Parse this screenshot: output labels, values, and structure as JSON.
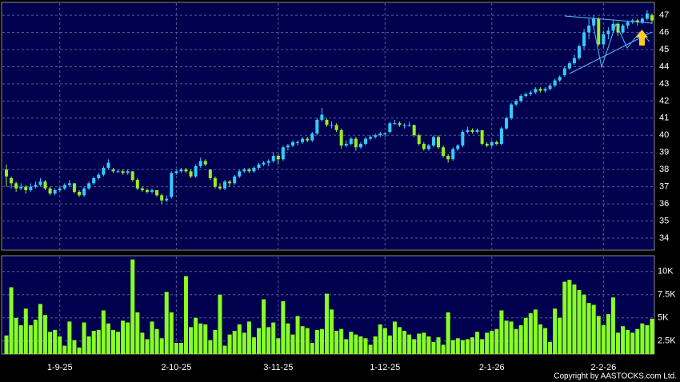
{
  "chart_data": {
    "type": "candlestick",
    "categories": [
      null,
      null,
      null,
      null,
      null,
      null,
      null,
      null,
      null,
      null,
      null,
      "1-9-25",
      null,
      null,
      null,
      null,
      null,
      null,
      null,
      null,
      null,
      null,
      null,
      null,
      null,
      null,
      null,
      null,
      null,
      null,
      null,
      null,
      null,
      null,
      null,
      "2-10-25",
      null,
      null,
      null,
      null,
      null,
      null,
      null,
      null,
      null,
      null,
      null,
      null,
      null,
      null,
      null,
      null,
      null,
      null,
      null,
      null,
      "3-11-25",
      null,
      null,
      null,
      null,
      null,
      null,
      null,
      null,
      null,
      null,
      null,
      null,
      null,
      null,
      null,
      null,
      null,
      null,
      null,
      null,
      null,
      "1-12-25",
      null,
      null,
      null,
      null,
      null,
      null,
      null,
      null,
      null,
      null,
      null,
      null,
      null,
      null,
      null,
      null,
      null,
      null,
      null,
      null,
      null,
      "2-1-26",
      null,
      null,
      null,
      null,
      null,
      null,
      null,
      null,
      null,
      null,
      null,
      null,
      null,
      null,
      null,
      null,
      null,
      null,
      null,
      null,
      null,
      null,
      "2-2-26",
      null,
      null,
      null,
      null,
      null,
      null,
      null,
      null,
      null,
      null
    ],
    "candles": [
      [
        38.0,
        38.3,
        37.0,
        37.6
      ],
      [
        37.5,
        37.6,
        36.9,
        37.2
      ],
      [
        37.2,
        37.3,
        36.7,
        36.9
      ],
      [
        36.9,
        37.2,
        36.8,
        37.0
      ],
      [
        37.0,
        37.1,
        36.6,
        36.8
      ],
      [
        36.8,
        37.2,
        36.7,
        37.0
      ],
      [
        37.0,
        37.3,
        36.9,
        37.1
      ],
      [
        37.1,
        37.5,
        37.0,
        37.3
      ],
      [
        37.3,
        37.4,
        36.8,
        36.9
      ],
      [
        36.9,
        37.0,
        36.5,
        36.6
      ],
      [
        36.6,
        36.9,
        36.5,
        36.8
      ],
      [
        36.8,
        37.0,
        36.7,
        36.9
      ],
      [
        36.9,
        37.2,
        36.8,
        37.1
      ],
      [
        37.1,
        37.4,
        37.0,
        37.2
      ],
      [
        37.2,
        37.2,
        36.6,
        36.7
      ],
      [
        36.7,
        36.8,
        36.4,
        36.5
      ],
      [
        36.5,
        37.0,
        36.4,
        36.9
      ],
      [
        36.9,
        37.3,
        36.8,
        37.2
      ],
      [
        37.2,
        37.6,
        37.1,
        37.5
      ],
      [
        37.5,
        37.8,
        37.4,
        37.7
      ],
      [
        37.7,
        38.2,
        37.6,
        38.1
      ],
      [
        38.1,
        38.6,
        38.0,
        38.4
      ],
      [
        38.0,
        38.1,
        37.8,
        37.9
      ],
      [
        37.9,
        38.0,
        37.8,
        37.9
      ],
      [
        37.9,
        38.0,
        37.7,
        37.8
      ],
      [
        37.8,
        38.0,
        37.7,
        37.9
      ],
      [
        37.9,
        37.9,
        37.3,
        37.4
      ],
      [
        37.4,
        37.5,
        36.8,
        36.9
      ],
      [
        36.9,
        37.0,
        36.7,
        36.8
      ],
      [
        36.8,
        36.9,
        36.6,
        36.7
      ],
      [
        36.7,
        36.9,
        36.6,
        36.8
      ],
      [
        36.8,
        36.8,
        36.4,
        36.5
      ],
      [
        36.5,
        36.6,
        36.0,
        36.2
      ],
      [
        36.2,
        36.5,
        36.1,
        36.3
      ],
      [
        36.4,
        37.9,
        36.3,
        37.8
      ],
      [
        37.8,
        38.0,
        37.7,
        37.9
      ],
      [
        37.9,
        38.1,
        37.8,
        38.0
      ],
      [
        38.0,
        38.1,
        37.8,
        37.9
      ],
      [
        37.9,
        38.0,
        37.5,
        37.6
      ],
      [
        37.6,
        38.3,
        37.5,
        38.2
      ],
      [
        38.2,
        38.7,
        38.1,
        38.5
      ],
      [
        38.5,
        38.6,
        38.2,
        38.3
      ],
      [
        38.0,
        38.0,
        37.4,
        37.5
      ],
      [
        37.5,
        37.6,
        36.9,
        37.0
      ],
      [
        37.0,
        37.2,
        36.8,
        36.9
      ],
      [
        36.9,
        37.4,
        36.8,
        37.3
      ],
      [
        37.3,
        37.4,
        37.0,
        37.2
      ],
      [
        37.2,
        37.7,
        37.1,
        37.6
      ],
      [
        37.6,
        38.0,
        37.5,
        37.9
      ],
      [
        37.9,
        38.1,
        37.8,
        38.0
      ],
      [
        38.0,
        38.1,
        37.8,
        37.9
      ],
      [
        37.9,
        38.2,
        37.8,
        38.1
      ],
      [
        38.1,
        38.4,
        38.0,
        38.3
      ],
      [
        38.3,
        38.5,
        38.2,
        38.4
      ],
      [
        38.4,
        38.6,
        38.2,
        38.5
      ],
      [
        38.5,
        39.0,
        38.4,
        38.8
      ],
      [
        38.8,
        38.9,
        38.3,
        38.6
      ],
      [
        38.6,
        39.4,
        38.5,
        39.3
      ],
      [
        39.3,
        39.5,
        39.1,
        39.4
      ],
      [
        39.4,
        39.7,
        39.3,
        39.6
      ],
      [
        39.6,
        39.7,
        39.4,
        39.6
      ],
      [
        39.6,
        39.9,
        39.5,
        39.8
      ],
      [
        39.8,
        39.9,
        39.6,
        39.7
      ],
      [
        39.7,
        40.2,
        39.6,
        40.1
      ],
      [
        40.1,
        41.0,
        40.0,
        40.9
      ],
      [
        40.9,
        41.6,
        40.8,
        41.2
      ],
      [
        40.9,
        41.0,
        40.5,
        40.6
      ],
      [
        40.6,
        40.8,
        40.4,
        40.6
      ],
      [
        40.6,
        40.7,
        40.2,
        40.3
      ],
      [
        40.3,
        40.4,
        39.2,
        39.4
      ],
      [
        39.4,
        39.7,
        39.3,
        39.5
      ],
      [
        39.5,
        39.9,
        39.4,
        39.8
      ],
      [
        39.8,
        39.9,
        39.1,
        39.3
      ],
      [
        39.3,
        39.6,
        39.2,
        39.5
      ],
      [
        39.5,
        39.9,
        39.4,
        39.8
      ],
      [
        39.8,
        40.0,
        39.7,
        39.9
      ],
      [
        39.9,
        40.1,
        39.8,
        40.0
      ],
      [
        40.0,
        40.2,
        39.9,
        40.1
      ],
      [
        40.1,
        40.2,
        39.9,
        40.1
      ],
      [
        40.2,
        40.8,
        40.1,
        40.7
      ],
      [
        40.7,
        40.9,
        40.6,
        40.7
      ],
      [
        40.7,
        40.8,
        40.5,
        40.6
      ],
      [
        40.6,
        40.7,
        40.4,
        40.6
      ],
      [
        40.6,
        40.8,
        40.5,
        40.6
      ],
      [
        40.6,
        40.6,
        39.9,
        40.0
      ],
      [
        40.0,
        40.1,
        39.4,
        39.5
      ],
      [
        39.5,
        39.6,
        39.1,
        39.2
      ],
      [
        39.2,
        39.5,
        39.1,
        39.4
      ],
      [
        39.4,
        40.0,
        39.3,
        39.9
      ],
      [
        39.9,
        40.0,
        39.2,
        39.3
      ],
      [
        39.3,
        39.4,
        38.7,
        38.8
      ],
      [
        38.8,
        38.9,
        38.4,
        38.6
      ],
      [
        38.6,
        39.3,
        38.5,
        39.2
      ],
      [
        39.2,
        39.5,
        39.1,
        39.4
      ],
      [
        39.4,
        40.3,
        39.3,
        40.2
      ],
      [
        40.2,
        40.5,
        40.1,
        40.3
      ],
      [
        40.3,
        40.4,
        40.1,
        40.2
      ],
      [
        40.2,
        40.4,
        40.1,
        40.3
      ],
      [
        40.3,
        40.3,
        39.4,
        39.5
      ],
      [
        39.5,
        39.6,
        39.3,
        39.4
      ],
      [
        39.4,
        39.7,
        39.3,
        39.6
      ],
      [
        39.6,
        39.7,
        39.4,
        39.5
      ],
      [
        39.5,
        40.5,
        39.4,
        40.4
      ],
      [
        40.4,
        41.1,
        40.3,
        41.0
      ],
      [
        41.0,
        41.9,
        40.9,
        41.8
      ],
      [
        41.8,
        42.1,
        41.7,
        42.0
      ],
      [
        42.0,
        42.4,
        41.9,
        42.3
      ],
      [
        42.3,
        42.5,
        42.2,
        42.4
      ],
      [
        42.4,
        42.6,
        42.3,
        42.5
      ],
      [
        42.5,
        42.8,
        42.4,
        42.7
      ],
      [
        42.7,
        42.8,
        42.5,
        42.6
      ],
      [
        42.6,
        42.8,
        42.5,
        42.7
      ],
      [
        42.7,
        43.0,
        42.6,
        42.9
      ],
      [
        42.9,
        43.3,
        42.8,
        43.2
      ],
      [
        43.2,
        43.5,
        43.1,
        43.4
      ],
      [
        43.5,
        44.0,
        43.4,
        43.9
      ],
      [
        43.9,
        44.3,
        43.8,
        44.2
      ],
      [
        44.2,
        44.7,
        44.1,
        44.5
      ],
      [
        44.5,
        45.3,
        44.4,
        45.2
      ],
      [
        45.2,
        46.2,
        45.0,
        46.0
      ],
      [
        46.0,
        46.8,
        45.6,
        46.4
      ],
      [
        46.4,
        47.0,
        46.2,
        46.8
      ],
      [
        46.8,
        46.9,
        45.2,
        45.3
      ],
      [
        45.3,
        46.1,
        45.1,
        45.9
      ],
      [
        45.9,
        46.3,
        45.6,
        46.1
      ],
      [
        46.1,
        46.7,
        46.0,
        46.5
      ],
      [
        46.5,
        46.6,
        45.8,
        46.0
      ],
      [
        46.0,
        46.5,
        45.9,
        46.4
      ],
      [
        46.4,
        46.7,
        46.2,
        46.6
      ],
      [
        46.6,
        46.8,
        46.5,
        46.7
      ],
      [
        46.7,
        46.8,
        46.4,
        46.6
      ],
      [
        46.6,
        46.9,
        46.5,
        46.8
      ],
      [
        46.8,
        47.3,
        46.7,
        47.1
      ],
      [
        47.0,
        47.1,
        46.5,
        46.7
      ]
    ],
    "volume": [
      3100,
      8300,
      5000,
      4200,
      6000,
      4200,
      4800,
      6500,
      5300,
      3500,
      3700,
      3000,
      2000,
      4600,
      2600,
      1800,
      4500,
      3000,
      3600,
      3700,
      5800,
      4400,
      3700,
      3500,
      4700,
      4500,
      11300,
      5600,
      3400,
      2700,
      4600,
      3800,
      2800,
      7800,
      5600,
      2300,
      2300,
      9500,
      4000,
      5000,
      4400,
      4300,
      2600,
      3700,
      7500,
      2000,
      3200,
      3600,
      4300,
      3400,
      4600,
      2900,
      3900,
      7000,
      4000,
      4500,
      2800,
      6800,
      4400,
      3200,
      5200,
      4100,
      3900,
      2300,
      3700,
      3800,
      7600,
      5900,
      3600,
      3800,
      2700,
      3500,
      3200,
      3000,
      2800,
      2100,
      3000,
      4300,
      3900,
      3100,
      4600,
      4000,
      3600,
      3200,
      2700,
      3300,
      3400,
      3000,
      2400,
      2900,
      2100,
      5600,
      2600,
      2800,
      2600,
      2700,
      2900,
      3500,
      2700,
      3400,
      3600,
      3800,
      5800,
      4700,
      4600,
      3800,
      4200,
      5000,
      5500,
      5900,
      4300,
      3900,
      2400,
      6000,
      5000,
      8900,
      9100,
      8600,
      8000,
      7500,
      6600,
      6400,
      5200,
      4200,
      5400,
      7200,
      3400,
      4100,
      3700,
      3400,
      3800,
      4400,
      4200,
      4900
    ],
    "ylim": [
      33.3,
      47.75
    ],
    "yticks": [
      34,
      35,
      36,
      37,
      38,
      39,
      40,
      41,
      42,
      43,
      44,
      45,
      46,
      47
    ],
    "volume_ylim": [
      1100,
      11700
    ],
    "volume_ticks": [
      {
        "value": 2500,
        "label": "2.5K"
      },
      {
        "value": 5000,
        "label": "5K"
      },
      {
        "value": 7500,
        "label": "7.5K"
      },
      {
        "value": 10000,
        "label": "10K"
      }
    ],
    "up_color": "#33ccff",
    "down_color": "#99ee22",
    "volume_color": "#88ff22",
    "grid": true,
    "copyright": "Copyright by AASTOCKS.com Ltd."
  }
}
